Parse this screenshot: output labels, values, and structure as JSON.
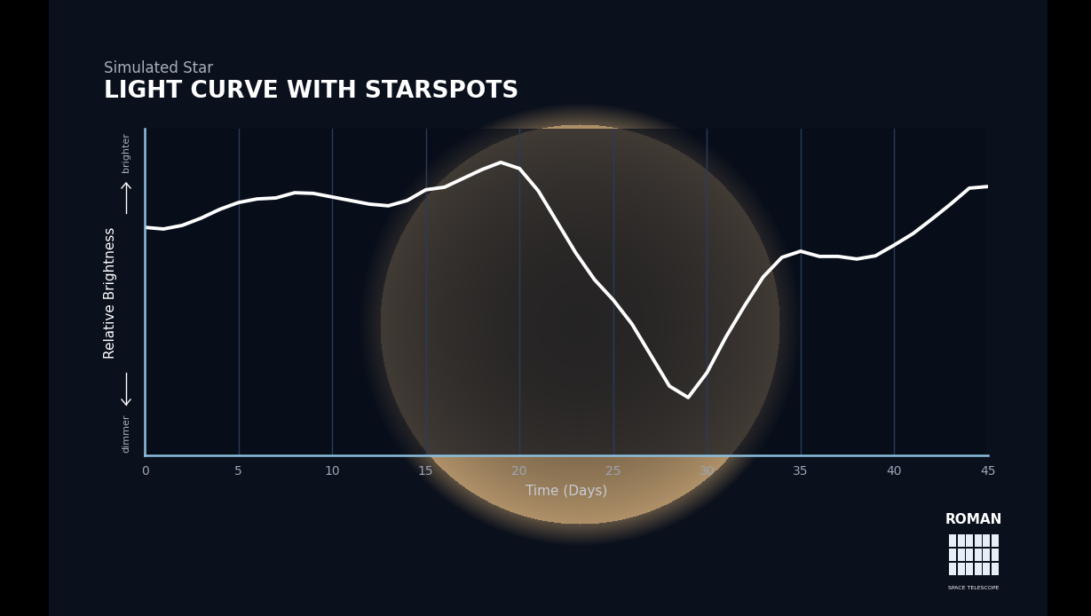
{
  "chart_data": {
    "type": "line",
    "title": "LIGHT CURVE WITH STARSPOTS",
    "subtitle": "Simulated Star",
    "xlabel": "Time (Days)",
    "ylabel": "Relative Brightness",
    "ylabel_high": "brighter",
    "ylabel_low": "dimmer",
    "logo": {
      "name": "ROMAN",
      "subtitle": "SPACE TELESCOPE"
    },
    "x": [
      0,
      1,
      2,
      3,
      4,
      5,
      6,
      7,
      8,
      9,
      10,
      11,
      12,
      13,
      14,
      15,
      16,
      17,
      18,
      19,
      20,
      21,
      22,
      23,
      24,
      25,
      26,
      27,
      28,
      29,
      30,
      31,
      32,
      33,
      34,
      35,
      36,
      37,
      38,
      39,
      40,
      41,
      42,
      43,
      44,
      45
    ],
    "values": [
      69.8,
      69.3,
      70.4,
      72.6,
      75.3,
      77.4,
      78.5,
      78.8,
      80.4,
      80.2,
      79.1,
      78.0,
      76.9,
      76.4,
      78.0,
      81.3,
      82.1,
      84.8,
      87.5,
      89.7,
      87.8,
      81.0,
      71.5,
      62.0,
      53.8,
      47.6,
      40.2,
      30.7,
      21.2,
      17.7,
      25.3,
      36.1,
      45.7,
      54.6,
      60.6,
      62.5,
      60.9,
      60.9,
      60.1,
      61.1,
      64.4,
      67.9,
      72.3,
      76.9,
      81.8,
      82.3
    ],
    "color": "#ffffff",
    "xlim": [
      0,
      45
    ],
    "xticks": [
      0,
      5,
      10,
      15,
      20,
      25,
      30,
      35,
      40,
      45
    ],
    "ylim": [
      0,
      100
    ],
    "yticks": [],
    "grid": true,
    "tick_labels": "x"
  }
}
